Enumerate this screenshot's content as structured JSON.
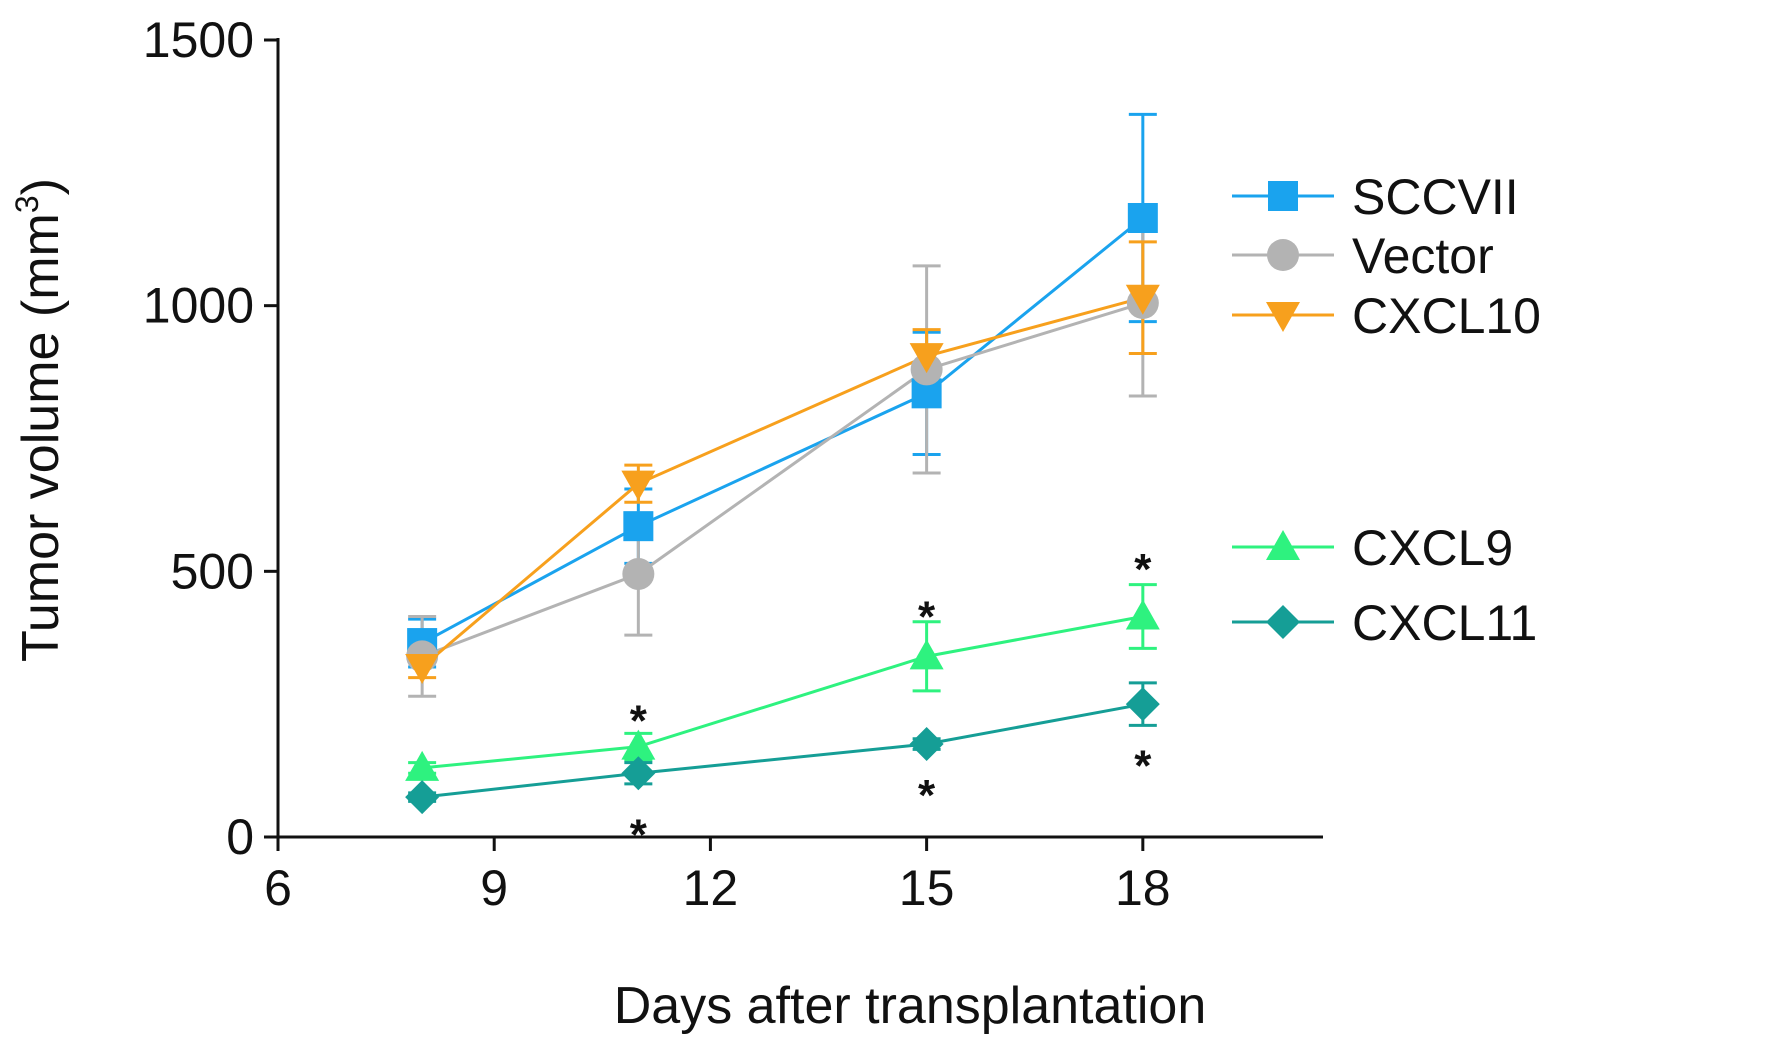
{
  "chart_data": {
    "type": "line",
    "title": "",
    "xlabel": "Days after transplantation",
    "ylabel": "Tumor volume (mm",
    "ylabel_superscript": "3",
    "ylabel_close": ")",
    "xlim": [
      6,
      20.5
    ],
    "ylim": [
      0,
      1500
    ],
    "xticks": [
      6,
      9,
      12,
      15,
      18
    ],
    "yticks": [
      0,
      500,
      1000,
      1500
    ],
    "xtick_labels": [
      "6",
      "9",
      "12",
      "15",
      "18"
    ],
    "ytick_labels": [
      "0",
      "500",
      "1000",
      "1500"
    ],
    "grid": false,
    "legend_position": "right",
    "series": [
      {
        "name": "SCCVII",
        "color": "#1aa3ee",
        "marker": "square",
        "x": [
          8,
          11,
          15,
          18
        ],
        "y": [
          365,
          585,
          835,
          1165
        ],
        "err": [
          45,
          70,
          115,
          195
        ]
      },
      {
        "name": "Vector",
        "color": "#b3b3b3",
        "marker": "circle",
        "x": [
          8,
          11,
          15,
          18
        ],
        "y": [
          340,
          495,
          880,
          1005
        ],
        "err": [
          75,
          115,
          195,
          175
        ]
      },
      {
        "name": "CXCL10",
        "color": "#f7a01d",
        "marker": "triangle-down",
        "x": [
          8,
          11,
          15,
          18
        ],
        "y": [
          320,
          665,
          905,
          1015
        ],
        "err": [
          20,
          35,
          50,
          105
        ]
      },
      {
        "name": "CXCL9",
        "color": "#2ef27f",
        "marker": "triangle-up",
        "x": [
          8,
          11,
          15,
          18
        ],
        "y": [
          130,
          170,
          340,
          415
        ],
        "err": [
          10,
          25,
          65,
          60
        ]
      },
      {
        "name": "CXCL11",
        "color": "#159e96",
        "marker": "diamond",
        "x": [
          8,
          11,
          15,
          18
        ],
        "y": [
          75,
          120,
          175,
          250
        ],
        "err": [
          8,
          20,
          10,
          40
        ]
      }
    ],
    "annotations": [
      {
        "text": "*",
        "x": 11,
        "y": 232
      },
      {
        "text": "*",
        "x": 11,
        "y": 18
      },
      {
        "text": "*",
        "x": 15,
        "y": 428
      },
      {
        "text": "*",
        "x": 15,
        "y": 92
      },
      {
        "text": "*",
        "x": 18,
        "y": 518
      },
      {
        "text": "*",
        "x": 18,
        "y": 148
      }
    ]
  }
}
